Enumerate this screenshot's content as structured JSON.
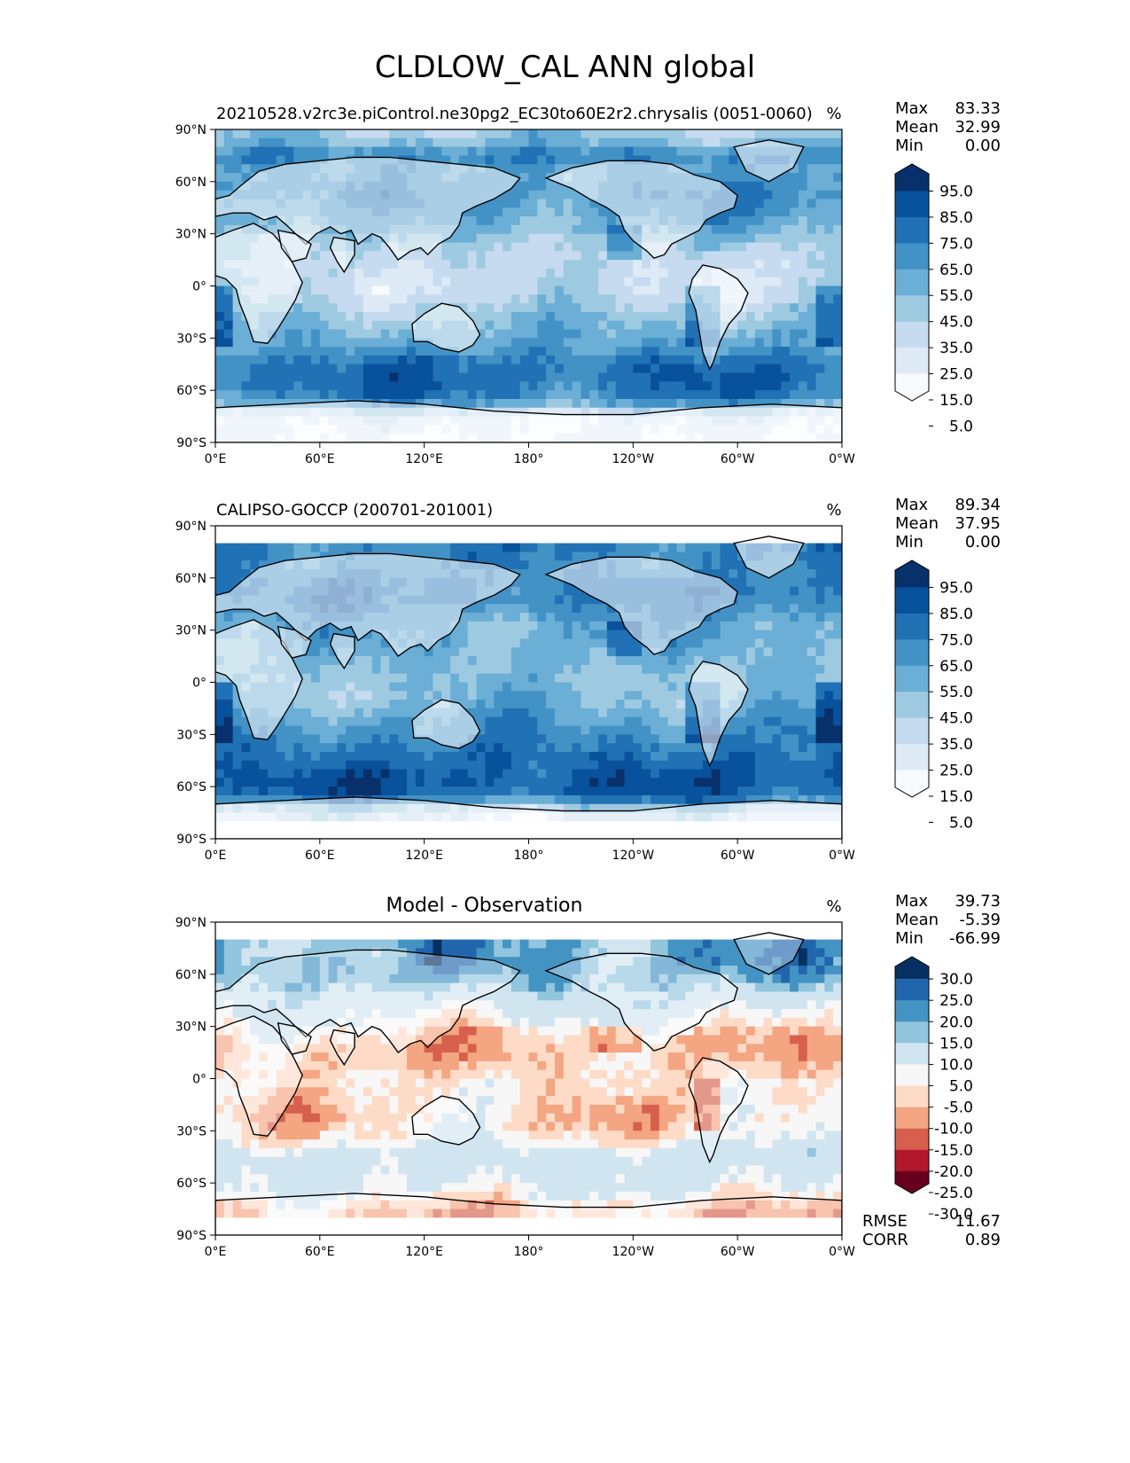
{
  "title": "CLDLOW_CAL ANN global",
  "axes": {
    "lat_ticks": [
      "90°N",
      "60°N",
      "30°N",
      "0°",
      "30°S",
      "60°S",
      "90°S"
    ],
    "lon_ticks": [
      "0°E",
      "60°E",
      "120°E",
      "180°",
      "120°W",
      "60°W",
      "0°W"
    ]
  },
  "colors": {
    "blues": [
      "#f7fbff",
      "#deebf7",
      "#c6dbef",
      "#9ecae1",
      "#6baed6",
      "#4292c6",
      "#2171b5",
      "#08519c",
      "#08306b"
    ],
    "diverging": [
      "#67001f",
      "#b2182b",
      "#d6604d",
      "#f4a582",
      "#fddbc7",
      "#f7f7f7",
      "#d1e5f0",
      "#92c5de",
      "#4393c3",
      "#2166ac",
      "#053061"
    ],
    "coast": "#000000"
  },
  "panels": [
    {
      "id": "model",
      "title": "20210528.v2rc3e.piControl.ne30pg2_EC30to60E2r2.chrysalis (0051-0060)",
      "units": "%",
      "stats": [
        {
          "label": "Max",
          "value": "83.33"
        },
        {
          "label": "Mean",
          "value": "32.99"
        },
        {
          "label": "Min",
          "value": "0.00"
        }
      ],
      "colorbar": {
        "labels": [
          "95.0",
          "85.0",
          "75.0",
          "65.0",
          "55.0",
          "45.0",
          "35.0",
          "25.0",
          "15.0",
          "5.0"
        ]
      }
    },
    {
      "id": "obs",
      "title": "CALIPSO-GOCCP (200701-201001)",
      "units": "%",
      "stats": [
        {
          "label": "Max",
          "value": "89.34"
        },
        {
          "label": "Mean",
          "value": "37.95"
        },
        {
          "label": "Min",
          "value": "0.00"
        }
      ],
      "colorbar": {
        "labels": [
          "95.0",
          "85.0",
          "75.0",
          "65.0",
          "55.0",
          "45.0",
          "35.0",
          "25.0",
          "15.0",
          "5.0"
        ]
      }
    },
    {
      "id": "diff",
      "title": "Model - Observation",
      "units": "%",
      "stats": [
        {
          "label": "Max",
          "value": "39.73"
        },
        {
          "label": "Mean",
          "value": "-5.39"
        },
        {
          "label": "Min",
          "value": "-66.99"
        }
      ],
      "colorbar": {
        "labels": [
          "30.0",
          "25.0",
          "20.0",
          "15.0",
          "10.0",
          "5.0",
          "-5.0",
          "-10.0",
          "-15.0",
          "-20.0",
          "-25.0",
          "-30.0"
        ]
      },
      "extra_stats": [
        {
          "label": "RMSE",
          "value": "11.67"
        },
        {
          "label": "CORR",
          "value": "0.89"
        }
      ]
    }
  ],
  "chart_data": [
    {
      "type": "heatmap",
      "title": "20210528.v2rc3e.piControl.ne30pg2_EC30to60E2r2.chrysalis (0051-0060)",
      "xlim": [
        0,
        360
      ],
      "ylim": [
        -90,
        90
      ],
      "zonal_profile": {
        "lat": [
          -85,
          -75,
          -65,
          -55,
          -45,
          -35,
          -25,
          -15,
          -5,
          5,
          15,
          25,
          35,
          45,
          55,
          65,
          75,
          85
        ],
        "value": [
          5,
          10,
          55,
          62,
          60,
          45,
          38,
          30,
          20,
          18,
          22,
          28,
          40,
          48,
          52,
          45,
          55,
          30
        ]
      },
      "colorbar_levels": [
        5,
        15,
        25,
        35,
        45,
        55,
        65,
        75,
        85,
        95
      ],
      "stats": {
        "max": 83.33,
        "mean": 32.99,
        "min": 0.0
      }
    },
    {
      "type": "heatmap",
      "title": "CALIPSO-GOCCP (200701-201001)",
      "xlim": [
        0,
        360
      ],
      "ylim": [
        -90,
        90
      ],
      "zonal_profile": {
        "lat": [
          -75,
          -65,
          -55,
          -45,
          -35,
          -25,
          -15,
          -5,
          5,
          15,
          25,
          35,
          45,
          55,
          65,
          75
        ],
        "value": [
          15,
          65,
          68,
          62,
          55,
          48,
          40,
          35,
          35,
          38,
          42,
          45,
          55,
          58,
          52,
          55
        ]
      },
      "colorbar_levels": [
        5,
        15,
        25,
        35,
        45,
        55,
        65,
        75,
        85,
        95
      ],
      "stats": {
        "max": 89.34,
        "mean": 37.95,
        "min": 0.0
      }
    },
    {
      "type": "heatmap",
      "title": "Model - Observation",
      "xlim": [
        0,
        360
      ],
      "ylim": [
        -90,
        90
      ],
      "zonal_profile": {
        "lat": [
          -75,
          -65,
          -55,
          -45,
          -35,
          -25,
          -15,
          -5,
          5,
          15,
          25,
          35,
          45,
          55,
          65,
          75
        ],
        "value": [
          -15,
          -5,
          -2,
          0,
          -8,
          -12,
          -12,
          -10,
          -12,
          -15,
          -12,
          -5,
          0,
          8,
          12,
          10
        ]
      },
      "colorbar_levels": [
        -30,
        -25,
        -20,
        -15,
        -10,
        -5,
        5,
        10,
        15,
        20,
        25,
        30
      ],
      "stats": {
        "max": 39.73,
        "mean": -5.39,
        "min": -66.99,
        "rmse": 11.67,
        "corr": 0.89
      }
    }
  ]
}
